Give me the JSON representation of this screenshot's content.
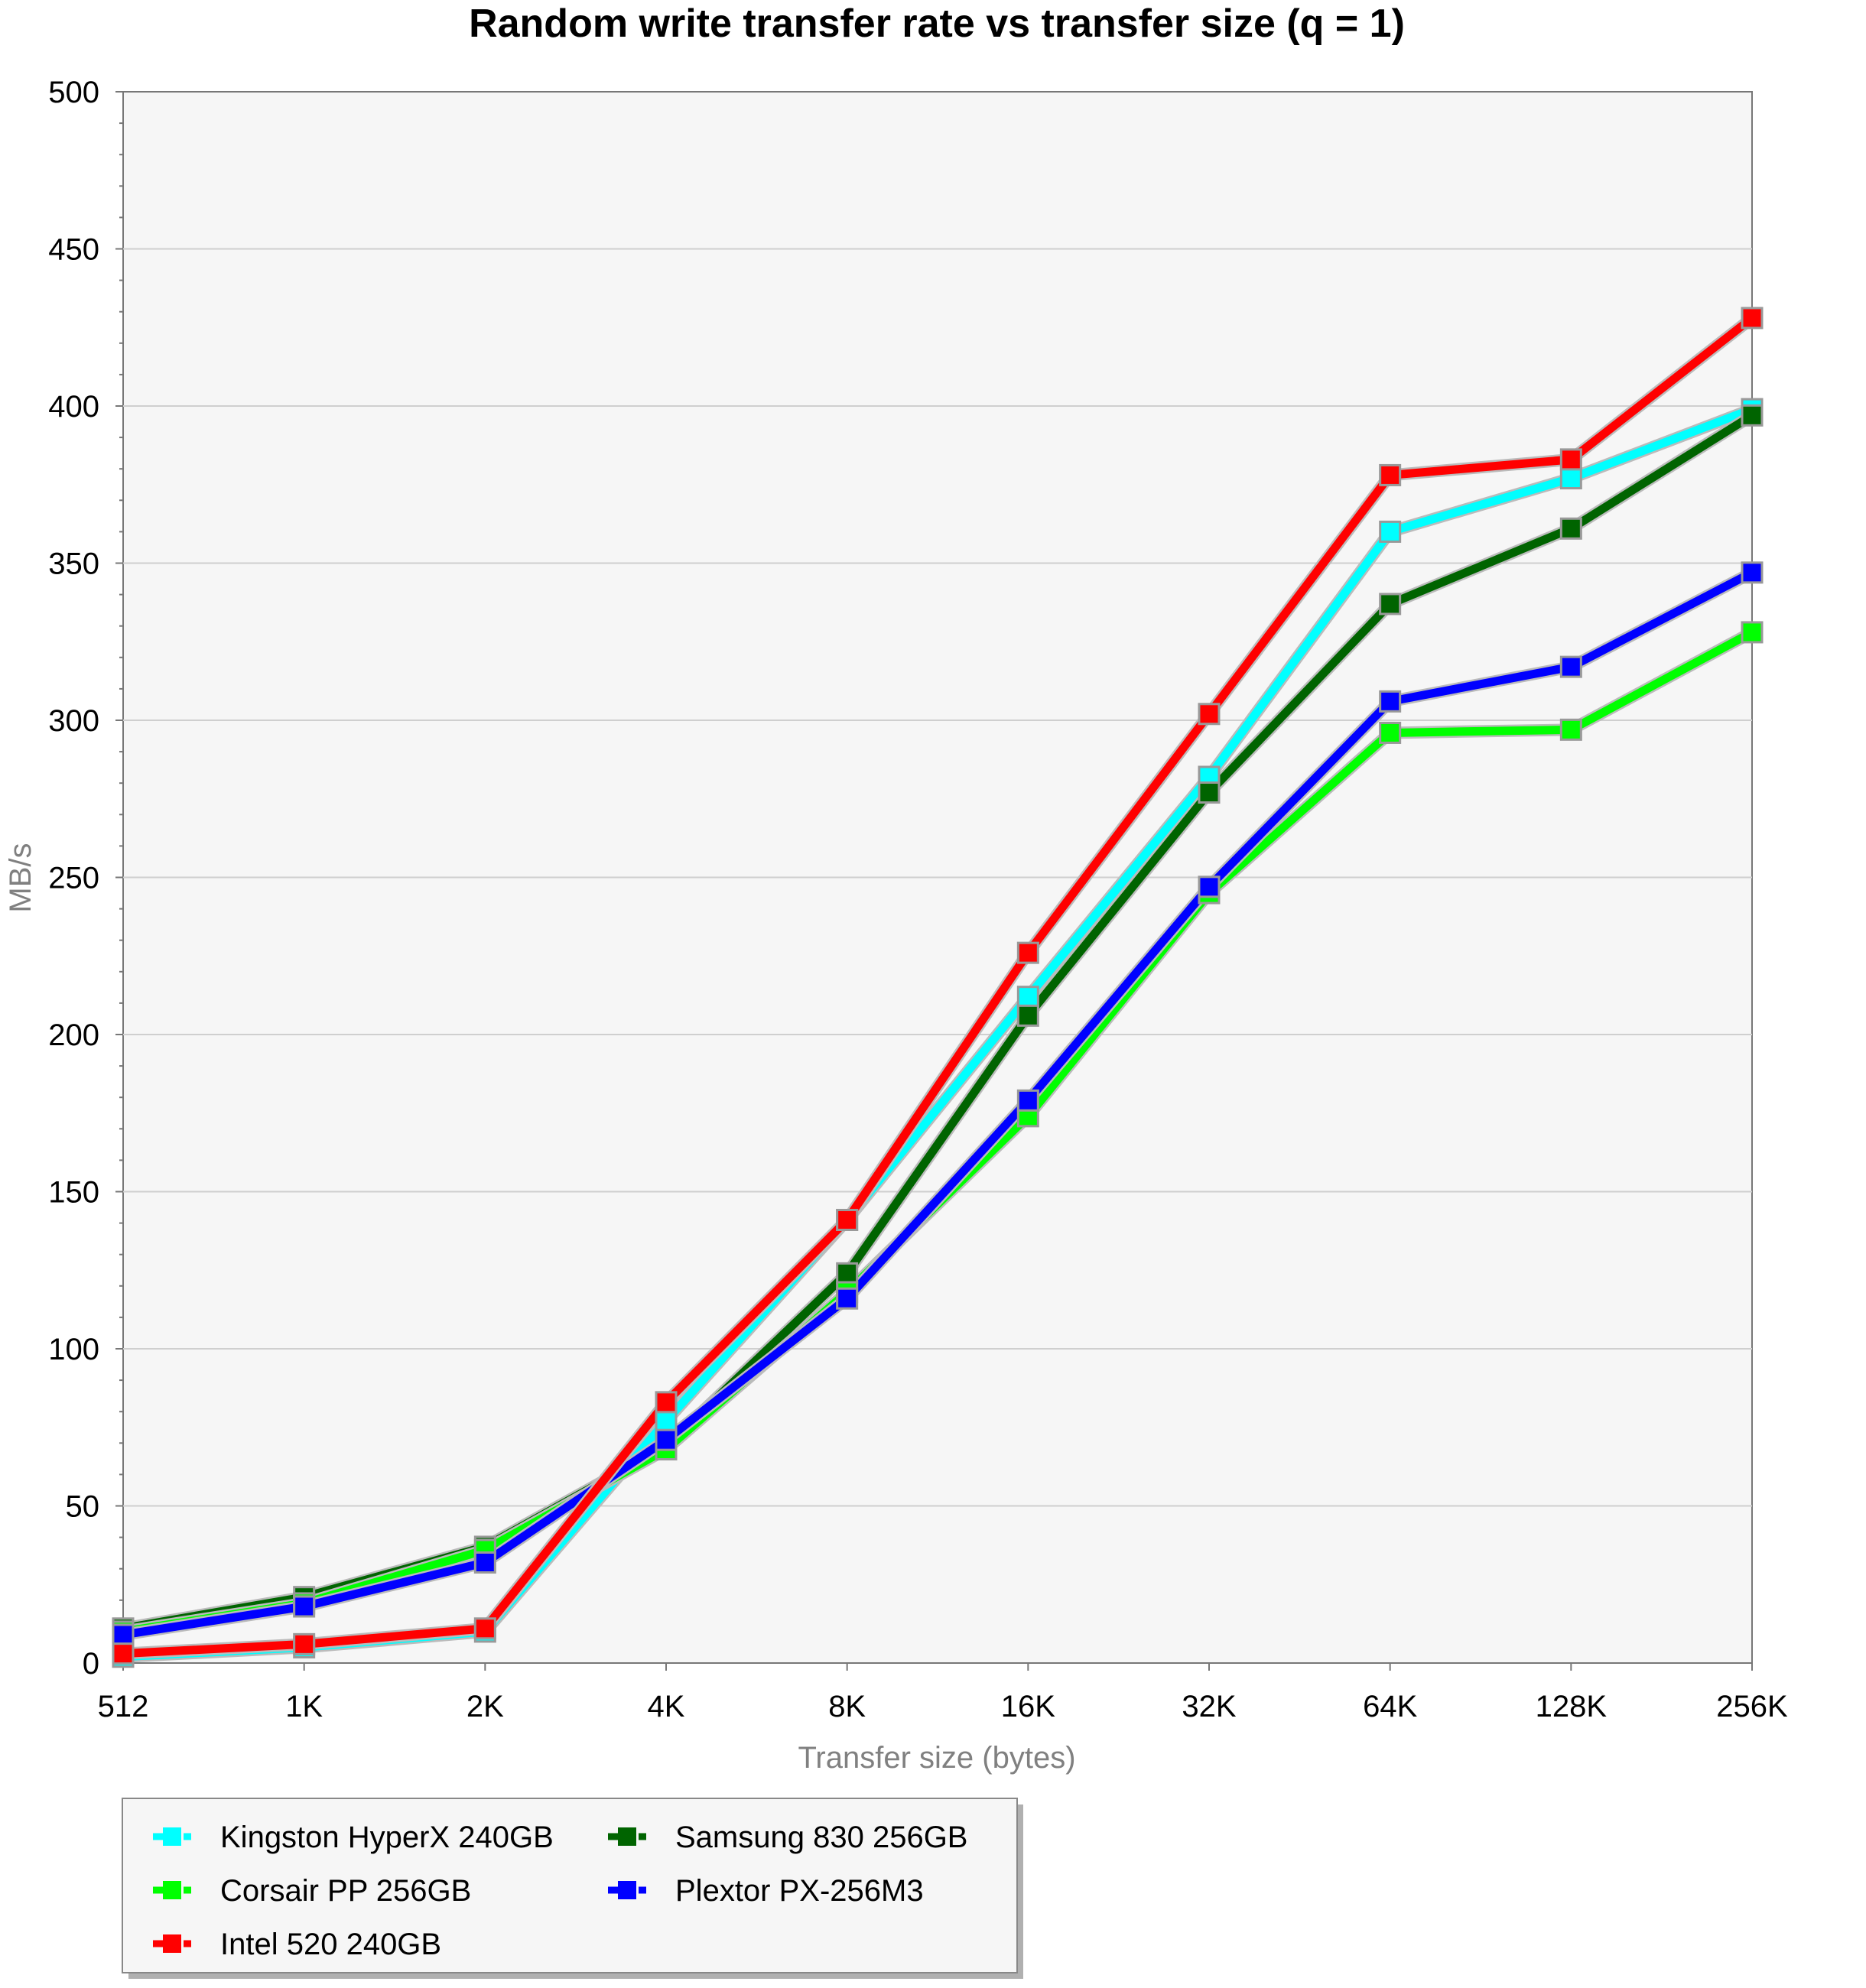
{
  "chart_data": {
    "type": "line",
    "title": "Random write transfer rate vs transfer size (q = 1)",
    "xlabel": "Transfer size (bytes)",
    "ylabel": "MB/s",
    "categories": [
      "512",
      "1K",
      "2K",
      "4K",
      "8K",
      "16K",
      "32K",
      "64K",
      "128K",
      "256K"
    ],
    "ylim": [
      0,
      500
    ],
    "yticks": [
      0,
      50,
      100,
      150,
      200,
      250,
      300,
      350,
      400,
      450,
      500
    ],
    "grid": true,
    "legend_position": "bottom-left",
    "series": [
      {
        "name": "Kingston HyperX 240GB",
        "color": "#00FFFF",
        "values": [
          2,
          5,
          10,
          77,
          141,
          212,
          282,
          360,
          377,
          399
        ]
      },
      {
        "name": "Samsung 830 256GB",
        "color": "#006400",
        "values": [
          11,
          21,
          37,
          69,
          124,
          206,
          277,
          337,
          361,
          397
        ]
      },
      {
        "name": "Corsair PP 256GB",
        "color": "#00FF00",
        "values": [
          10,
          19,
          36,
          68,
          118,
          174,
          245,
          296,
          297,
          328
        ]
      },
      {
        "name": "Plextor PX-256M3",
        "color": "#0000FF",
        "values": [
          9,
          18,
          32,
          71,
          116,
          179,
          247,
          306,
          317,
          347
        ]
      },
      {
        "name": "Intel 520 240GB",
        "color": "#FF0000",
        "values": [
          3,
          6,
          11,
          83,
          141,
          226,
          302,
          378,
          383,
          428
        ]
      }
    ],
    "legend_order": [
      0,
      1,
      2,
      3,
      4
    ]
  }
}
